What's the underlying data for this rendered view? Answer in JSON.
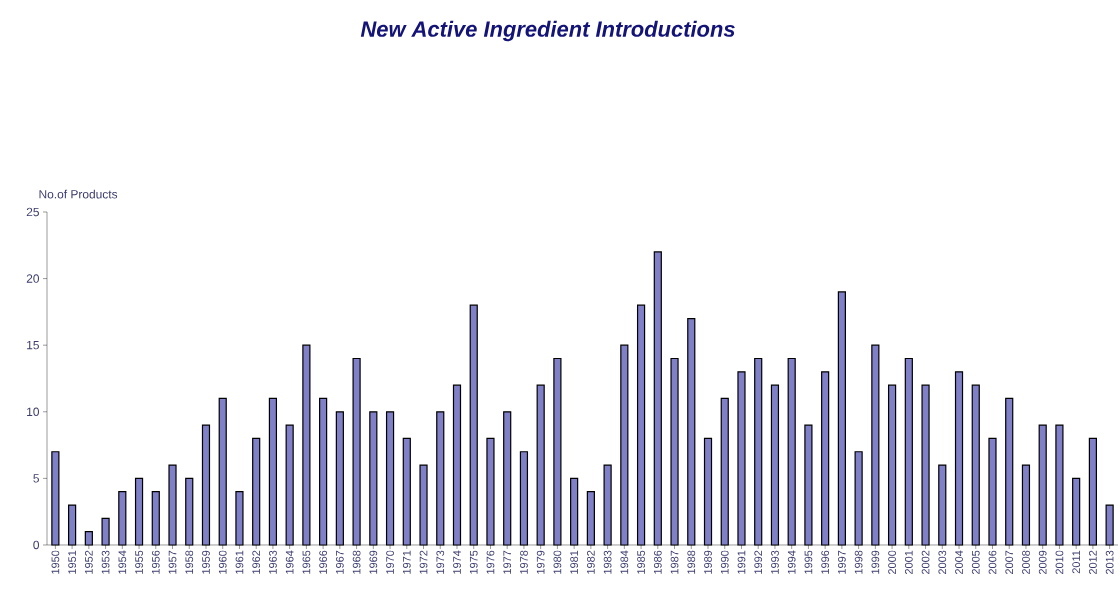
{
  "chart_data": {
    "type": "bar",
    "title": "New Active Ingredient Introductions",
    "ylabel": "No.of Products",
    "categories": [
      "1950",
      "1951",
      "1952",
      "1953",
      "1954",
      "1955",
      "1956",
      "1957",
      "1958",
      "1959",
      "1960",
      "1961",
      "1962",
      "1963",
      "1964",
      "1965",
      "1966",
      "1967",
      "1968",
      "1969",
      "1970",
      "1971",
      "1972",
      "1973",
      "1974",
      "1975",
      "1976",
      "1977",
      "1978",
      "1979",
      "1980",
      "1981",
      "1982",
      "1983",
      "1984",
      "1985",
      "1986",
      "1987",
      "1988",
      "1989",
      "1990",
      "1991",
      "1992",
      "1993",
      "1994",
      "1995",
      "1996",
      "1997",
      "1998",
      "1999",
      "2000",
      "2001",
      "2002",
      "2003",
      "2004",
      "2005",
      "2006",
      "2007",
      "2008",
      "2009",
      "2010",
      "2011",
      "2012",
      "2013"
    ],
    "values": [
      7,
      3,
      1,
      2,
      4,
      5,
      4,
      6,
      5,
      9,
      11,
      4,
      8,
      11,
      9,
      15,
      11,
      10,
      14,
      10,
      10,
      8,
      6,
      10,
      12,
      18,
      8,
      10,
      7,
      12,
      14,
      5,
      4,
      6,
      15,
      18,
      22,
      14,
      17,
      8,
      11,
      13,
      14,
      12,
      14,
      9,
      13,
      19,
      7,
      15,
      12,
      14,
      12,
      6,
      13,
      12,
      8,
      11,
      6,
      9,
      9,
      5,
      8,
      3
    ],
    "color": "#8080c8",
    "ylim": [
      0,
      25
    ],
    "yticks": [
      0,
      5,
      10,
      15,
      20,
      25
    ],
    "grid": false
  }
}
